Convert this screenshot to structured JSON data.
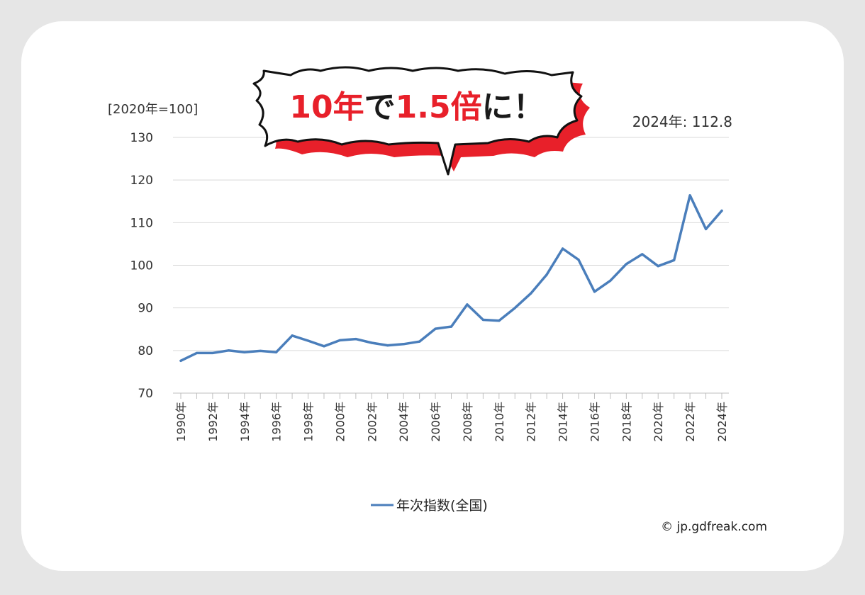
{
  "chart_data": {
    "type": "line",
    "unit_label": "[2020年=100]",
    "annotation": "2024年: 112.8",
    "callout": {
      "parts": [
        "10",
        "年",
        "で",
        "1.5",
        "倍",
        "に！"
      ],
      "colors": [
        "red",
        "red",
        "dark",
        "red",
        "red",
        "dark"
      ],
      "accent_color": "#e8202a",
      "dark_color": "#1a1a1a"
    },
    "x_tick_labels": [
      "1990年",
      "1992年",
      "1994年",
      "1996年",
      "1998年",
      "2000年",
      "2002年",
      "2004年",
      "2006年",
      "2008年",
      "2010年",
      "2012年",
      "2014年",
      "2016年",
      "2018年",
      "2020年",
      "2022年",
      "2024年"
    ],
    "y_ticks": [
      70,
      80,
      90,
      100,
      110,
      120,
      130
    ],
    "ylim": [
      70,
      130
    ],
    "grid": true,
    "legend_position": "bottom",
    "series": [
      {
        "name": "年次指数(全国)",
        "color": "#4a7ebb",
        "x": [
          1990,
          1991,
          1992,
          1993,
          1994,
          1995,
          1996,
          1997,
          1998,
          1999,
          2000,
          2001,
          2002,
          2003,
          2004,
          2005,
          2006,
          2007,
          2008,
          2009,
          2010,
          2011,
          2012,
          2013,
          2014,
          2015,
          2016,
          2017,
          2018,
          2019,
          2020,
          2021,
          2022,
          2023,
          2024
        ],
        "values": [
          77.6,
          79.4,
          79.4,
          80.0,
          79.6,
          79.9,
          79.6,
          83.5,
          82.3,
          81.0,
          82.4,
          82.7,
          81.8,
          81.2,
          81.5,
          82.1,
          85.1,
          85.6,
          90.8,
          87.2,
          87.0,
          90.0,
          93.4,
          97.8,
          103.9,
          101.3,
          93.8,
          96.4,
          100.3,
          102.6,
          99.8,
          101.2,
          116.4,
          108.5,
          112.8
        ]
      }
    ]
  },
  "credit": "© jp.gdfreak.com"
}
